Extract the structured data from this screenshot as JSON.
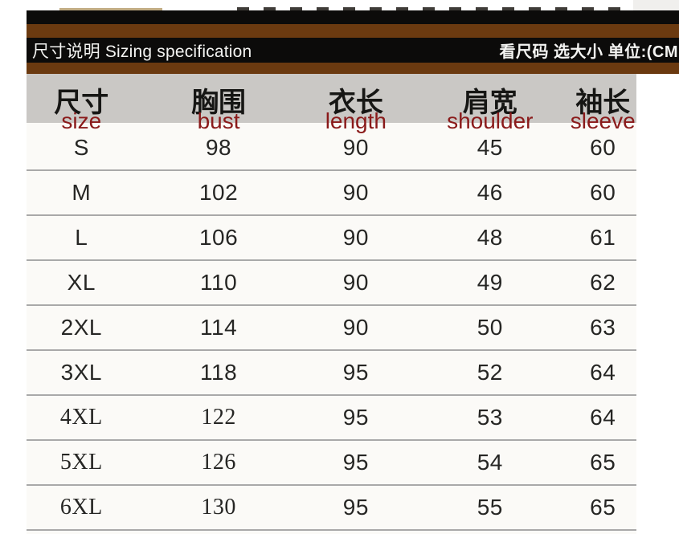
{
  "colors": {
    "brown": "#6b3a10",
    "bar-black": "#0c0b0a",
    "band-gray": "#cac8c5",
    "table-bg": "#fbfaf7",
    "divider": "#a9a9a9",
    "accent-red": "#8a1a1a",
    "text-dark": "#262624",
    "title-text": "#f4f4f2"
  },
  "title_bar": {
    "left_title": "尺寸说明 Sizing specification",
    "right_note": "看尺码 选大小 单位:(CM"
  },
  "size_table": {
    "columns": [
      {
        "zh": "尺寸",
        "en": "size"
      },
      {
        "zh": "胸围",
        "en": "bust"
      },
      {
        "zh": "衣长",
        "en": "length"
      },
      {
        "zh": "肩宽",
        "en": "shoulder"
      },
      {
        "zh": "袖长",
        "en": "sleeve"
      }
    ],
    "rows": [
      [
        "S",
        "98",
        "90",
        "45",
        "60"
      ],
      [
        "M",
        "102",
        "90",
        "46",
        "60"
      ],
      [
        "L",
        "106",
        "90",
        "48",
        "61"
      ],
      [
        "XL",
        "110",
        "90",
        "49",
        "62"
      ],
      [
        "2XL",
        "114",
        "90",
        "50",
        "63"
      ],
      [
        "3XL",
        "118",
        "95",
        "52",
        "64"
      ],
      [
        "4XL",
        "122",
        "95",
        "53",
        "64"
      ],
      [
        "5XL",
        "126",
        "95",
        "54",
        "65"
      ],
      [
        "6XL",
        "130",
        "95",
        "55",
        "65"
      ]
    ]
  },
  "chart_data": {
    "type": "table",
    "title": "尺寸说明 Sizing specification",
    "unit": "CM",
    "columns": [
      "尺寸 size",
      "胸围 bust",
      "衣长 length",
      "肩宽 shoulder",
      "袖长 sleeve"
    ],
    "rows": [
      [
        "S",
        98,
        90,
        45,
        60
      ],
      [
        "M",
        102,
        90,
        46,
        60
      ],
      [
        "L",
        106,
        90,
        48,
        61
      ],
      [
        "XL",
        110,
        90,
        49,
        62
      ],
      [
        "2XL",
        114,
        90,
        50,
        63
      ],
      [
        "3XL",
        118,
        95,
        52,
        64
      ],
      [
        "4XL",
        122,
        95,
        53,
        64
      ],
      [
        "5XL",
        126,
        95,
        54,
        65
      ],
      [
        "6XL",
        130,
        95,
        55,
        65
      ]
    ]
  }
}
